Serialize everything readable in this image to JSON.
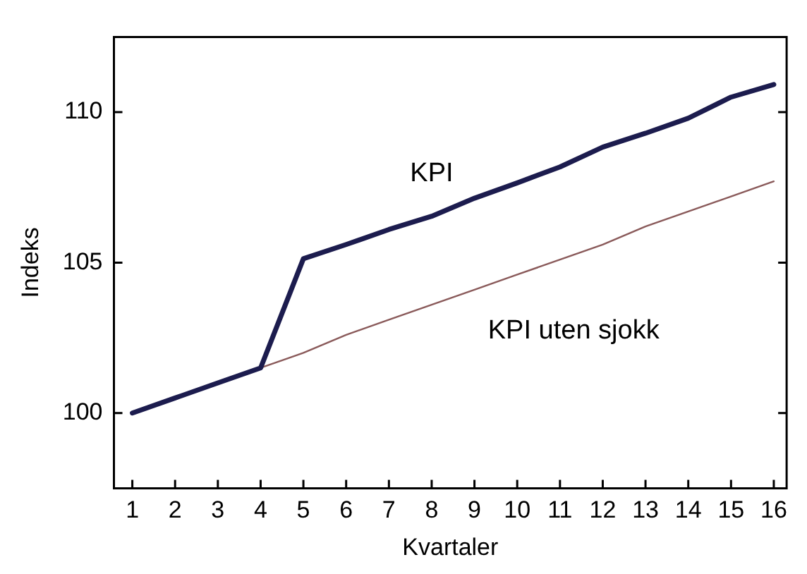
{
  "chart_data": {
    "type": "line",
    "xlabel": "Kvartaler",
    "ylabel": "Indeks",
    "x": [
      1,
      2,
      3,
      4,
      5,
      6,
      7,
      8,
      9,
      10,
      11,
      12,
      13,
      14,
      15,
      16
    ],
    "xlim": [
      0.57,
      16.3
    ],
    "xticks": [
      1,
      2,
      3,
      4,
      5,
      6,
      7,
      8,
      9,
      10,
      11,
      12,
      13,
      14,
      15,
      16
    ],
    "ylim": [
      97.5,
      112.5
    ],
    "yticks": [
      100,
      105,
      110
    ],
    "grid": false,
    "legend": false,
    "marker": "none",
    "line_style": "solid",
    "series": [
      {
        "name": "KPI",
        "color": "#1c1c4e",
        "values": [
          100,
          100.5,
          101.0,
          101.5,
          105.13,
          105.6,
          106.1,
          106.54,
          107.14,
          107.65,
          108.18,
          108.84,
          109.3,
          109.8,
          110.5,
          110.92
        ]
      },
      {
        "name": "KPI uten sjokk",
        "color": "#8a5a5a",
        "values": [
          100,
          100.5,
          101.0,
          101.5,
          102.0,
          102.6,
          103.1,
          103.6,
          104.1,
          104.6,
          105.1,
          105.6,
          106.2,
          106.7,
          107.2,
          107.7
        ]
      }
    ]
  }
}
